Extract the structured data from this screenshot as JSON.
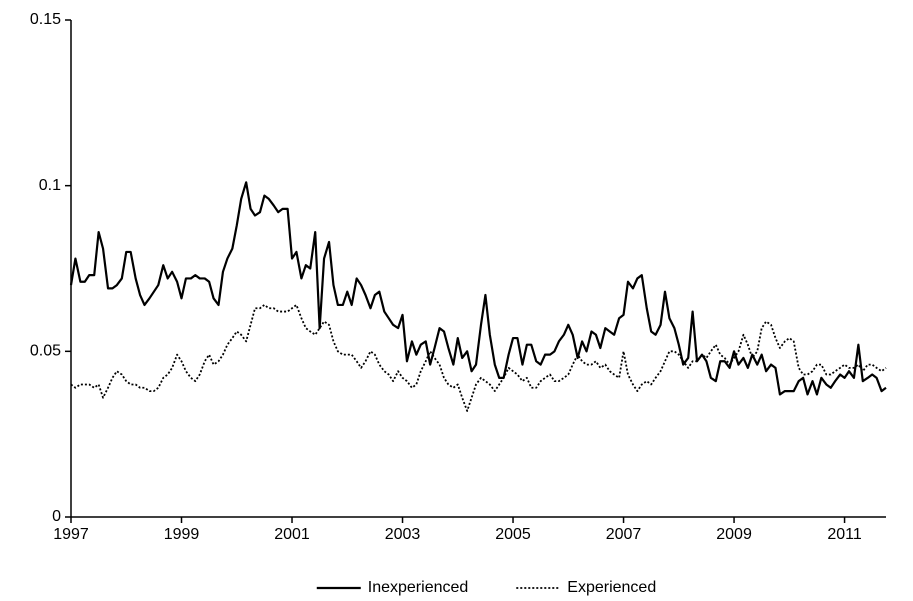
{
  "chart_data": {
    "type": "line",
    "xlim": [
      1997,
      2011.75
    ],
    "xticks": [
      1997,
      1999,
      2001,
      2003,
      2005,
      2007,
      2009,
      2011
    ],
    "ylim": [
      0,
      0.15
    ],
    "yticks": [
      0,
      0.05,
      0.1,
      0.15
    ],
    "grid": false,
    "legend": "bottom",
    "x": [
      1997,
      1997.08,
      1997.17,
      1997.25,
      1997.33,
      1997.42,
      1997.5,
      1997.58,
      1997.67,
      1997.75,
      1997.83,
      1997.92,
      1998,
      1998.08,
      1998.17,
      1998.25,
      1998.33,
      1998.42,
      1998.5,
      1998.58,
      1998.67,
      1998.75,
      1998.83,
      1998.92,
      1999,
      1999.08,
      1999.17,
      1999.25,
      1999.33,
      1999.42,
      1999.5,
      1999.58,
      1999.67,
      1999.75,
      1999.83,
      1999.92,
      2000,
      2000.08,
      2000.17,
      2000.25,
      2000.33,
      2000.42,
      2000.5,
      2000.58,
      2000.67,
      2000.75,
      2000.83,
      2000.92,
      2001,
      2001.08,
      2001.17,
      2001.25,
      2001.33,
      2001.42,
      2001.5,
      2001.58,
      2001.67,
      2001.75,
      2001.83,
      2001.92,
      2002,
      2002.08,
      2002.17,
      2002.25,
      2002.33,
      2002.42,
      2002.5,
      2002.58,
      2002.67,
      2002.75,
      2002.83,
      2002.92,
      2003,
      2003.08,
      2003.17,
      2003.25,
      2003.33,
      2003.42,
      2003.5,
      2003.58,
      2003.67,
      2003.75,
      2003.83,
      2003.92,
      2004,
      2004.08,
      2004.17,
      2004.25,
      2004.33,
      2004.42,
      2004.5,
      2004.58,
      2004.67,
      2004.75,
      2004.83,
      2004.92,
      2005,
      2005.08,
      2005.17,
      2005.25,
      2005.33,
      2005.42,
      2005.5,
      2005.58,
      2005.67,
      2005.75,
      2005.83,
      2005.92,
      2006,
      2006.08,
      2006.17,
      2006.25,
      2006.33,
      2006.42,
      2006.5,
      2006.58,
      2006.67,
      2006.75,
      2006.83,
      2006.92,
      2007,
      2007.08,
      2007.17,
      2007.25,
      2007.33,
      2007.42,
      2007.5,
      2007.58,
      2007.67,
      2007.75,
      2007.83,
      2007.92,
      2008,
      2008.08,
      2008.17,
      2008.25,
      2008.33,
      2008.42,
      2008.5,
      2008.58,
      2008.67,
      2008.75,
      2008.83,
      2008.92,
      2009,
      2009.08,
      2009.17,
      2009.25,
      2009.33,
      2009.42,
      2009.5,
      2009.58,
      2009.67,
      2009.75,
      2009.83,
      2009.92,
      2010,
      2010.08,
      2010.17,
      2010.25,
      2010.33,
      2010.42,
      2010.5,
      2010.58,
      2010.67,
      2010.75,
      2010.83,
      2010.92,
      2011,
      2011.08,
      2011.17,
      2011.25,
      2011.33,
      2011.42,
      2011.5,
      2011.58,
      2011.67,
      2011.75
    ],
    "series": [
      {
        "name": "Inexperienced",
        "color": "#000000",
        "style": "solid",
        "values": [
          0.07,
          0.078,
          0.071,
          0.071,
          0.073,
          0.073,
          0.086,
          0.081,
          0.069,
          0.069,
          0.07,
          0.072,
          0.08,
          0.08,
          0.072,
          0.067,
          0.064,
          0.066,
          0.068,
          0.07,
          0.076,
          0.072,
          0.074,
          0.071,
          0.066,
          0.072,
          0.072,
          0.073,
          0.072,
          0.072,
          0.071,
          0.066,
          0.064,
          0.074,
          0.078,
          0.081,
          0.088,
          0.096,
          0.101,
          0.093,
          0.091,
          0.092,
          0.097,
          0.096,
          0.094,
          0.092,
          0.093,
          0.093,
          0.078,
          0.08,
          0.072,
          0.076,
          0.075,
          0.086,
          0.057,
          0.078,
          0.083,
          0.07,
          0.064,
          0.064,
          0.068,
          0.064,
          0.072,
          0.07,
          0.067,
          0.063,
          0.067,
          0.068,
          0.062,
          0.06,
          0.058,
          0.057,
          0.061,
          0.047,
          0.053,
          0.049,
          0.052,
          0.053,
          0.046,
          0.051,
          0.057,
          0.056,
          0.051,
          0.046,
          0.054,
          0.048,
          0.05,
          0.044,
          0.046,
          0.058,
          0.067,
          0.055,
          0.046,
          0.042,
          0.042,
          0.049,
          0.054,
          0.054,
          0.046,
          0.052,
          0.052,
          0.047,
          0.046,
          0.049,
          0.049,
          0.05,
          0.053,
          0.055,
          0.058,
          0.055,
          0.048,
          0.053,
          0.05,
          0.056,
          0.055,
          0.051,
          0.057,
          0.056,
          0.055,
          0.06,
          0.061,
          0.071,
          0.069,
          0.072,
          0.073,
          0.063,
          0.056,
          0.055,
          0.058,
          0.068,
          0.06,
          0.057,
          0.052,
          0.046,
          0.048,
          0.062,
          0.047,
          0.049,
          0.047,
          0.042,
          0.041,
          0.047,
          0.047,
          0.045,
          0.05,
          0.046,
          0.048,
          0.045,
          0.049,
          0.046,
          0.049,
          0.044,
          0.046,
          0.045,
          0.037,
          0.038,
          0.038,
          0.038,
          0.041,
          0.042,
          0.037,
          0.041,
          0.037,
          0.042,
          0.04,
          0.039,
          0.041,
          0.043,
          0.042,
          0.044,
          0.042,
          0.052,
          0.041,
          0.042,
          0.043,
          0.042,
          0.038,
          0.039
        ]
      },
      {
        "name": "Experienced",
        "color": "#000000",
        "style": "dotted",
        "values": [
          0.04,
          0.039,
          0.04,
          0.04,
          0.04,
          0.039,
          0.04,
          0.036,
          0.039,
          0.042,
          0.044,
          0.043,
          0.041,
          0.04,
          0.04,
          0.039,
          0.039,
          0.038,
          0.038,
          0.039,
          0.042,
          0.043,
          0.045,
          0.049,
          0.047,
          0.044,
          0.042,
          0.041,
          0.043,
          0.047,
          0.049,
          0.046,
          0.047,
          0.049,
          0.052,
          0.054,
          0.056,
          0.055,
          0.053,
          0.058,
          0.063,
          0.063,
          0.064,
          0.063,
          0.063,
          0.062,
          0.062,
          0.062,
          0.063,
          0.064,
          0.06,
          0.057,
          0.056,
          0.055,
          0.057,
          0.059,
          0.058,
          0.053,
          0.05,
          0.049,
          0.049,
          0.049,
          0.047,
          0.045,
          0.047,
          0.05,
          0.049,
          0.046,
          0.044,
          0.043,
          0.041,
          0.044,
          0.042,
          0.041,
          0.039,
          0.04,
          0.044,
          0.047,
          0.05,
          0.048,
          0.046,
          0.042,
          0.04,
          0.039,
          0.04,
          0.036,
          0.032,
          0.036,
          0.04,
          0.042,
          0.041,
          0.04,
          0.038,
          0.04,
          0.042,
          0.045,
          0.044,
          0.043,
          0.041,
          0.042,
          0.039,
          0.039,
          0.041,
          0.042,
          0.043,
          0.041,
          0.041,
          0.042,
          0.043,
          0.046,
          0.049,
          0.047,
          0.046,
          0.046,
          0.047,
          0.045,
          0.046,
          0.044,
          0.043,
          0.042,
          0.05,
          0.043,
          0.04,
          0.038,
          0.04,
          0.041,
          0.04,
          0.042,
          0.044,
          0.047,
          0.05,
          0.05,
          0.049,
          0.047,
          0.045,
          0.047,
          0.047,
          0.049,
          0.048,
          0.05,
          0.052,
          0.049,
          0.048,
          0.046,
          0.048,
          0.05,
          0.055,
          0.052,
          0.048,
          0.05,
          0.057,
          0.059,
          0.058,
          0.054,
          0.051,
          0.053,
          0.054,
          0.053,
          0.045,
          0.043,
          0.043,
          0.044,
          0.046,
          0.046,
          0.043,
          0.043,
          0.044,
          0.045,
          0.046,
          0.045,
          0.045,
          0.046,
          0.044,
          0.046,
          0.046,
          0.045,
          0.044,
          0.045
        ]
      }
    ]
  }
}
